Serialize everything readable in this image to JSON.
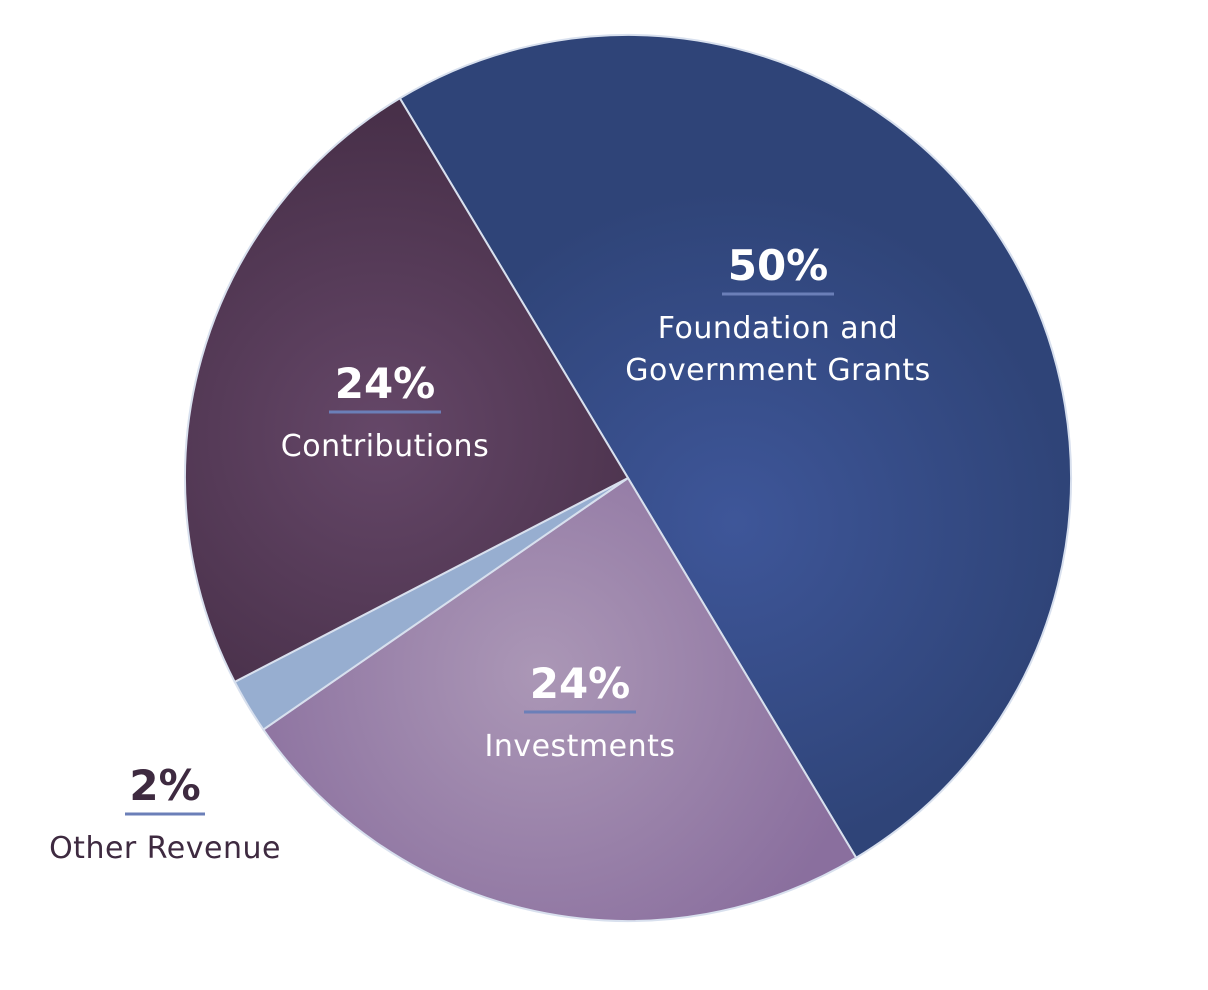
{
  "chart_data": {
    "type": "pie",
    "title": "",
    "slices": [
      {
        "label_lines": [
          "Foundation and",
          "Government Grants"
        ],
        "value": 50,
        "value_label": "50%",
        "color": "#2f4478",
        "gradient_center": "#3e5699"
      },
      {
        "label_lines": [
          "Investments"
        ],
        "value": 24,
        "value_label": "24%",
        "color": "#8a6f9e",
        "gradient_center": "#ab97b6"
      },
      {
        "label_lines": [
          "Other Revenue"
        ],
        "value": 2,
        "value_label": "2%",
        "color": "#97aed0",
        "gradient_center": "#97aed0"
      },
      {
        "label_lines": [
          "Contributions"
        ],
        "value": 24,
        "value_label": "24%",
        "color": "#472f48",
        "gradient_center": "#654768"
      }
    ],
    "label_text_color": "#ffffff",
    "outside_label_color": "#3e2a40",
    "underline_color": "#6b7fb8",
    "edge_color": "#d8e0ee"
  }
}
